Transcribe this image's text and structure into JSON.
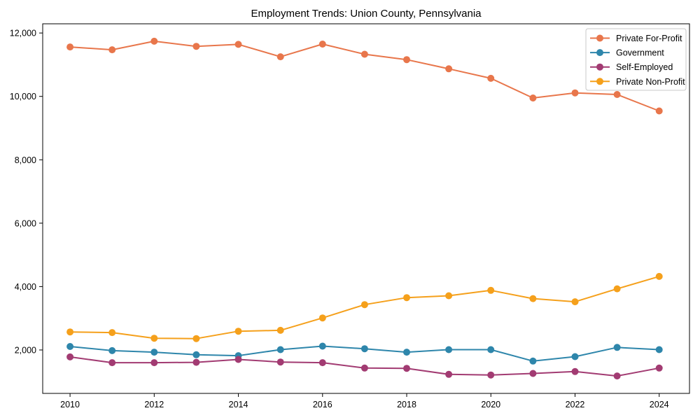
{
  "chart_data": {
    "type": "line",
    "title": "Employment Trends: Union County, Pennsylvania",
    "xlabel": "",
    "ylabel": "",
    "x": [
      2010,
      2011,
      2012,
      2013,
      2014,
      2015,
      2016,
      2017,
      2018,
      2019,
      2020,
      2021,
      2022,
      2023,
      2024
    ],
    "series": [
      {
        "name": "Private For-Profit",
        "color": "#E8764B",
        "values": [
          11560,
          11470,
          11740,
          11580,
          11640,
          11250,
          11650,
          11330,
          11160,
          10870,
          10570,
          9950,
          10110,
          10060,
          9540
        ]
      },
      {
        "name": "Government",
        "color": "#2E86AB",
        "values": [
          2110,
          1980,
          1930,
          1850,
          1820,
          2010,
          2120,
          2040,
          1930,
          2010,
          2010,
          1650,
          1790,
          2080,
          2010
        ]
      },
      {
        "name": "Self-Employed",
        "color": "#A23B72",
        "values": [
          1780,
          1600,
          1600,
          1610,
          1700,
          1620,
          1600,
          1430,
          1420,
          1230,
          1210,
          1260,
          1320,
          1180,
          1430
        ]
      },
      {
        "name": "Private Non-Profit",
        "color": "#F5A01B",
        "values": [
          2570,
          2550,
          2370,
          2360,
          2590,
          2620,
          3010,
          3430,
          3650,
          3710,
          3880,
          3620,
          3520,
          3930,
          4320
        ]
      }
    ],
    "xticks": [
      2010,
      2012,
      2014,
      2016,
      2018,
      2020,
      2022,
      2024
    ],
    "yticks": [
      {
        "value": 2000,
        "label": "2,000"
      },
      {
        "value": 4000,
        "label": "4,000"
      },
      {
        "value": 6000,
        "label": "6,000"
      },
      {
        "value": 8000,
        "label": "8,000"
      },
      {
        "value": 10000,
        "label": "10,000"
      },
      {
        "value": 12000,
        "label": "12,000"
      }
    ],
    "xlim": [
      2009.35,
      2024.72
    ],
    "ylim": [
      630,
      12290
    ],
    "grid": false,
    "legend_position": "upper right",
    "marker": "circle",
    "line_width": 2,
    "marker_radius": 5,
    "axis_color": "#000000",
    "legend_border_color": "#c8c8c8",
    "background_color": "#ffffff"
  }
}
